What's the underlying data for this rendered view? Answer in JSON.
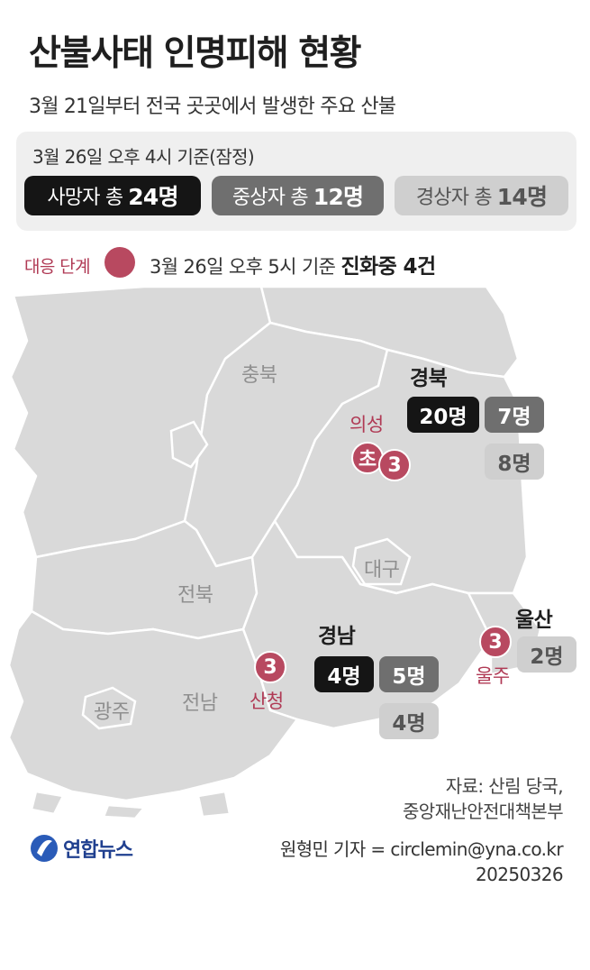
{
  "title": "산불사태 인명피해 현황",
  "subtitle": "3월 21일부터 전국 곳곳에서 발생한 주요 산불",
  "summary": {
    "basis": "3월 26일 오후 4시 기준(잠정)",
    "deaths": {
      "label": "사망자 총",
      "value": "24명"
    },
    "severe": {
      "label": "중상자 총",
      "value": "12명"
    },
    "minor": {
      "label": "경상자 총",
      "value": "14명"
    }
  },
  "response": {
    "label": "대응 단계",
    "text": "3월 26일 오후 5시 기준",
    "status": "진화중 4건"
  },
  "colors": {
    "deaths": "#151515",
    "severe": "#6f6f6f",
    "minor": "#cfcfcf",
    "fire": "#b84960",
    "land": "#d9d9d9"
  },
  "map": {
    "regions": {
      "chungbuk": "충북",
      "daegu": "대구",
      "jeonbuk": "전북",
      "jeonnam": "전남",
      "gwangju": "광주"
    },
    "gyeongbuk": {
      "name": "경북",
      "deaths": "20명",
      "severe": "7명",
      "minor": "8명"
    },
    "gyeongnam": {
      "name": "경남",
      "deaths": "4명",
      "severe": "5명",
      "minor": "4명"
    },
    "ulsan": {
      "name": "울산",
      "minor": "2명"
    },
    "fires": [
      {
        "name": "의성",
        "level": "3",
        "extra": "초"
      },
      {
        "name": "산청",
        "level": "3"
      },
      {
        "name": "울주",
        "level": "3"
      }
    ]
  },
  "source": {
    "line1": "자료: 산림 당국,",
    "line2": "중앙재난안전대책본부"
  },
  "credit": {
    "reporter": "원형민 기자 = circlemin@yna.co.kr",
    "date": "20250326"
  },
  "logo": {
    "text": "연합뉴스",
    "icon": "yonhap-logo-icon"
  }
}
